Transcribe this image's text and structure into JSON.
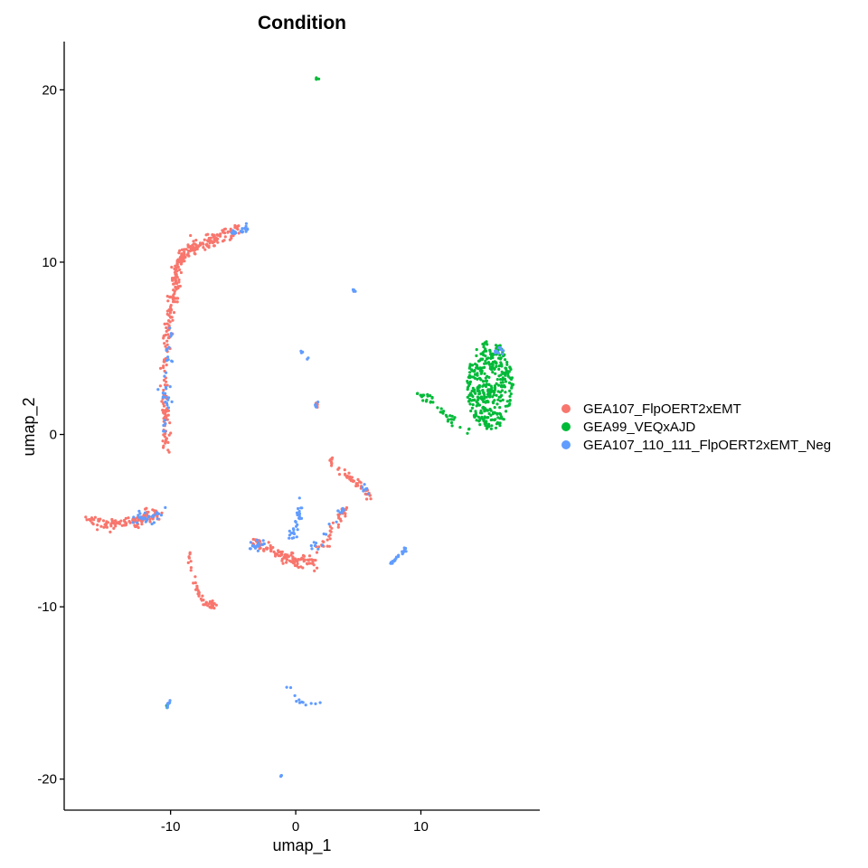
{
  "chart_data": {
    "type": "scatter",
    "title": "Condition",
    "xlabel": "umap_1",
    "ylabel": "umap_2",
    "xlim": [
      -18.5,
      19.5
    ],
    "ylim": [
      -21.8,
      22.8
    ],
    "x_ticks": [
      -10,
      0,
      10
    ],
    "y_ticks": [
      20,
      10,
      0,
      -10,
      -20
    ],
    "grid": false,
    "legend_position": "right",
    "series": [
      {
        "name": "GEA107_FlpOERT2xEMT",
        "color": "#F8766D",
        "clusters": [
          {
            "path": [
              [
                -9.6,
                9.5
              ],
              [
                -9.3,
                10.2
              ],
              [
                -8.8,
                10.6
              ],
              [
                -7.6,
                11.0
              ],
              [
                -6.2,
                11.4
              ],
              [
                -4.5,
                11.9
              ]
            ],
            "n": 160,
            "spread": 0.35
          },
          {
            "path": [
              [
                -10.4,
                5.0
              ],
              [
                -10.1,
                6.5
              ],
              [
                -9.7,
                8.0
              ],
              [
                -9.5,
                9.3
              ]
            ],
            "n": 90,
            "spread": 0.25
          },
          {
            "path": [
              [
                -10.3,
                -1.0
              ],
              [
                -10.4,
                1.0
              ],
              [
                -10.5,
                2.0
              ],
              [
                -10.5,
                4.5
              ]
            ],
            "n": 70,
            "spread": 0.25
          },
          {
            "path": [
              [
                -16.5,
                -5.0
              ],
              [
                -15.0,
                -5.2
              ],
              [
                -13.5,
                -5.2
              ],
              [
                -12.0,
                -4.8
              ],
              [
                -11.0,
                -4.6
              ]
            ],
            "n": 120,
            "spread": 0.3
          },
          {
            "path": [
              [
                -8.5,
                -6.8
              ],
              [
                -8.2,
                -8.5
              ],
              [
                -7.5,
                -9.7
              ],
              [
                -6.5,
                -9.9
              ]
            ],
            "n": 45,
            "spread": 0.18
          },
          {
            "path": [
              [
                -3.5,
                -6.2
              ],
              [
                -1.5,
                -6.8
              ],
              [
                0.0,
                -7.3
              ],
              [
                1.5,
                -7.4
              ]
            ],
            "n": 110,
            "spread": 0.3
          },
          {
            "path": [
              [
                1.5,
                -7.0
              ],
              [
                2.5,
                -6.2
              ],
              [
                3.3,
                -5.0
              ],
              [
                4.0,
                -4.3
              ]
            ],
            "n": 40,
            "spread": 0.25
          },
          {
            "path": [
              [
                3.5,
                -2.0
              ],
              [
                4.5,
                -2.6
              ],
              [
                5.5,
                -3.1
              ],
              [
                5.8,
                -3.6
              ]
            ],
            "n": 40,
            "spread": 0.2
          },
          {
            "path": [
              [
                2.8,
                -1.2
              ],
              [
                3.0,
                -2.0
              ]
            ],
            "n": 8,
            "spread": 0.15
          },
          {
            "path": [
              [
                1.6,
                1.8
              ],
              [
                1.8,
                1.5
              ]
            ],
            "n": 6,
            "spread": 0.12
          }
        ]
      },
      {
        "name": "GEA99_VEQxAJD",
        "color": "#00BA38",
        "clusters": [
          {
            "ellipse": [
              15.5,
              2.8,
              1.8,
              2.6
            ],
            "n": 380
          },
          {
            "path": [
              [
                9.7,
                2.4
              ],
              [
                10.6,
                2.0
              ],
              [
                11.5,
                1.5
              ],
              [
                12.5,
                0.8
              ],
              [
                13.8,
                0.2
              ]
            ],
            "n": 40,
            "spread": 0.22
          },
          {
            "path": [
              [
                1.7,
                20.6
              ],
              [
                1.8,
                20.7
              ]
            ],
            "n": 4,
            "spread": 0.08
          },
          {
            "path": [
              [
                -10.3,
                -15.8
              ],
              [
                -10.2,
                -15.6
              ]
            ],
            "n": 3,
            "spread": 0.08
          }
        ]
      },
      {
        "name": "GEA107_110_111_FlpOERT2xEMT_Neg",
        "color": "#619CFF",
        "clusters": [
          {
            "path": [
              [
                -5.0,
                11.7
              ],
              [
                -3.8,
                11.9
              ]
            ],
            "n": 25,
            "spread": 0.2
          },
          {
            "path": [
              [
                -10.5,
                0.0
              ],
              [
                -10.3,
                3.0
              ],
              [
                -10.1,
                6.0
              ]
            ],
            "n": 35,
            "spread": 0.35
          },
          {
            "path": [
              [
                -13.0,
                -5.0
              ],
              [
                -11.5,
                -4.8
              ],
              [
                -10.3,
                -4.4
              ]
            ],
            "n": 30,
            "spread": 0.3
          },
          {
            "path": [
              [
                -3.5,
                -6.6
              ],
              [
                -2.5,
                -6.2
              ]
            ],
            "n": 22,
            "spread": 0.25
          },
          {
            "path": [
              [
                0.2,
                -3.5
              ],
              [
                0.3,
                -4.8
              ],
              [
                0.0,
                -5.5
              ],
              [
                -0.5,
                -6.0
              ]
            ],
            "n": 30,
            "spread": 0.22
          },
          {
            "path": [
              [
                1.0,
                -6.5
              ],
              [
                2.0,
                -6.2
              ],
              [
                3.0,
                -5.2
              ],
              [
                3.8,
                -4.2
              ]
            ],
            "n": 18,
            "spread": 0.25
          },
          {
            "path": [
              [
                7.6,
                -7.5
              ],
              [
                8.8,
                -6.6
              ]
            ],
            "n": 22,
            "spread": 0.12
          },
          {
            "path": [
              [
                4.6,
                8.4
              ],
              [
                4.7,
                8.3
              ]
            ],
            "n": 6,
            "spread": 0.08
          },
          {
            "path": [
              [
                0.3,
                4.9
              ],
              [
                1.0,
                4.4
              ]
            ],
            "n": 5,
            "spread": 0.1
          },
          {
            "path": [
              [
                1.6,
                1.6
              ],
              [
                1.8,
                1.9
              ]
            ],
            "n": 5,
            "spread": 0.1
          },
          {
            "path": [
              [
                16.0,
                4.8
              ],
              [
                16.6,
                4.8
              ]
            ],
            "n": 10,
            "spread": 0.2
          },
          {
            "path": [
              [
                -10.3,
                -15.8
              ],
              [
                -10.1,
                -15.4
              ]
            ],
            "n": 10,
            "spread": 0.1
          },
          {
            "path": [
              [
                -0.5,
                -14.8
              ],
              [
                0.5,
                -15.7
              ],
              [
                2.0,
                -15.4
              ]
            ],
            "n": 12,
            "spread": 0.15
          },
          {
            "path": [
              [
                -1.2,
                -19.8
              ],
              [
                -1.1,
                -19.9
              ]
            ],
            "n": 3,
            "spread": 0.06
          },
          {
            "path": [
              [
                5.4,
                -3.0
              ],
              [
                5.8,
                -3.4
              ]
            ],
            "n": 8,
            "spread": 0.15
          }
        ]
      }
    ]
  }
}
